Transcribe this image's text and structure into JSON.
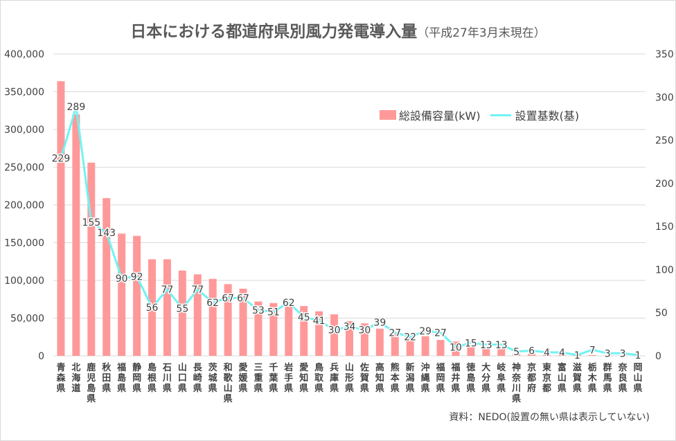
{
  "title": "日本における都道府県別風力発電導入量",
  "subtitle": "（平成27年3月末現在）",
  "source_note": "資料：NEDO(設置の無い県は表示していない)",
  "colors": {
    "bar": "#ff9999",
    "line": "#6ff3f3",
    "grid": "#d9d9d9",
    "text": "#404040"
  },
  "legend": {
    "bar_label": "総設備容量(kW)",
    "line_label": "設置基数(基)"
  },
  "chart_data": {
    "type": "bar",
    "title": "日本における都道府県別風力発電導入量",
    "subtitle": "（平成27年3月末現在）",
    "legend_position": "top-right",
    "grid": true,
    "y_left": {
      "range": [
        0,
        400000
      ],
      "ticks": [
        "0",
        "50,000",
        "100,000",
        "150,000",
        "200,000",
        "250,000",
        "300,000",
        "350,000",
        "400,000"
      ]
    },
    "y_right": {
      "range": [
        0,
        350
      ],
      "ticks": [
        "0",
        "50",
        "100",
        "150",
        "200",
        "250",
        "300",
        "350"
      ]
    },
    "categories": [
      "青森県",
      "北海道",
      "鹿児島県",
      "秋田県",
      "福島県",
      "静岡県",
      "島根県",
      "石川県",
      "山口県",
      "長崎県",
      "茨城県",
      "和歌山県",
      "愛媛県",
      "三重県",
      "千葉県",
      "岩手県",
      "愛知県",
      "鳥取県",
      "兵庫県",
      "山形県",
      "佐賀県",
      "高知県",
      "熊本県",
      "新潟県",
      "沖縄県",
      "福岡県",
      "福井県",
      "徳島県",
      "大分県",
      "岐阜県",
      "神奈川県",
      "京都府",
      "東京都",
      "富山県",
      "滋賀県",
      "栃木県",
      "群馬県",
      "奈良県",
      "岡山県"
    ],
    "series": [
      {
        "name": "総設備容量(kW)",
        "type": "bar",
        "axis": "left",
        "values": [
          364000,
          320000,
          256000,
          209000,
          162000,
          159000,
          128000,
          128000,
          113000,
          108000,
          102000,
          95000,
          89000,
          72000,
          70000,
          68000,
          66000,
          59000,
          55000,
          46000,
          43000,
          36000,
          29000,
          27000,
          26000,
          21000,
          19000,
          13000,
          12000,
          11000,
          3000,
          2500,
          2000,
          1500,
          1000,
          900,
          600,
          500,
          100
        ]
      },
      {
        "name": "設置基数(基)",
        "type": "line",
        "axis": "right",
        "values": [
          229,
          289,
          155,
          143,
          90,
          92,
          56,
          77,
          55,
          77,
          62,
          67,
          67,
          53,
          51,
          62,
          45,
          41,
          30,
          34,
          30,
          39,
          27,
          22,
          29,
          27,
          10,
          15,
          13,
          13,
          5,
          6,
          4,
          4,
          1,
          7,
          3,
          3,
          1
        ]
      }
    ]
  }
}
